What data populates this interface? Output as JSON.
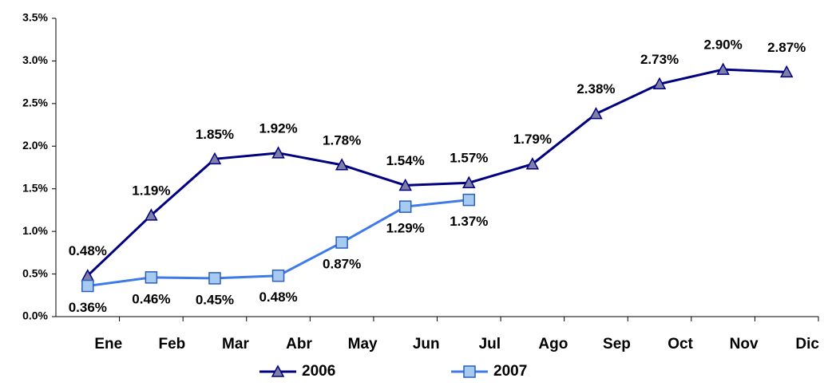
{
  "chart_data": {
    "type": "line",
    "categories": [
      "Ene",
      "Feb",
      "Mar",
      "Abr",
      "May",
      "Jun",
      "Jul",
      "Ago",
      "Sep",
      "Oct",
      "Nov",
      "Dic"
    ],
    "series": [
      {
        "name": "2006",
        "color": "#000080",
        "marker": "triangle",
        "marker_fill": "#7f7fa8",
        "values": [
          0.48,
          1.19,
          1.85,
          1.92,
          1.78,
          1.54,
          1.57,
          1.79,
          2.38,
          2.73,
          2.9,
          2.87
        ],
        "value_labels": [
          "0.48%",
          "1.19%",
          "1.85%",
          "1.92%",
          "1.78%",
          "1.54%",
          "1.57%",
          "1.79%",
          "2.38%",
          "2.73%",
          "2.90%",
          "2.87%"
        ],
        "label_position": "above"
      },
      {
        "name": "2007",
        "color": "#3f7be8",
        "marker": "square",
        "marker_fill": "#a6caf0",
        "values": [
          0.36,
          0.46,
          0.45,
          0.48,
          0.87,
          1.29,
          1.37,
          null,
          null,
          null,
          null,
          null
        ],
        "value_labels": [
          "0.36%",
          "0.46%",
          "0.45%",
          "0.48%",
          "0.87%",
          "1.29%",
          "1.37%",
          null,
          null,
          null,
          null,
          null
        ],
        "label_position": "below"
      }
    ],
    "ylim": [
      0,
      3.5
    ],
    "yticks": [
      {
        "value": 0,
        "label": "0.0%"
      },
      {
        "value": 0.5,
        "label": "0.5%"
      },
      {
        "value": 1,
        "label": "1.0%"
      },
      {
        "value": 1.5,
        "label": "1.5%"
      },
      {
        "value": 2,
        "label": "2.0%"
      },
      {
        "value": 2.5,
        "label": "2.5%"
      },
      {
        "value": 3,
        "label": "3.0%"
      },
      {
        "value": 3.5,
        "label": "3.5%"
      }
    ],
    "grid": false,
    "legend": "bottom"
  }
}
